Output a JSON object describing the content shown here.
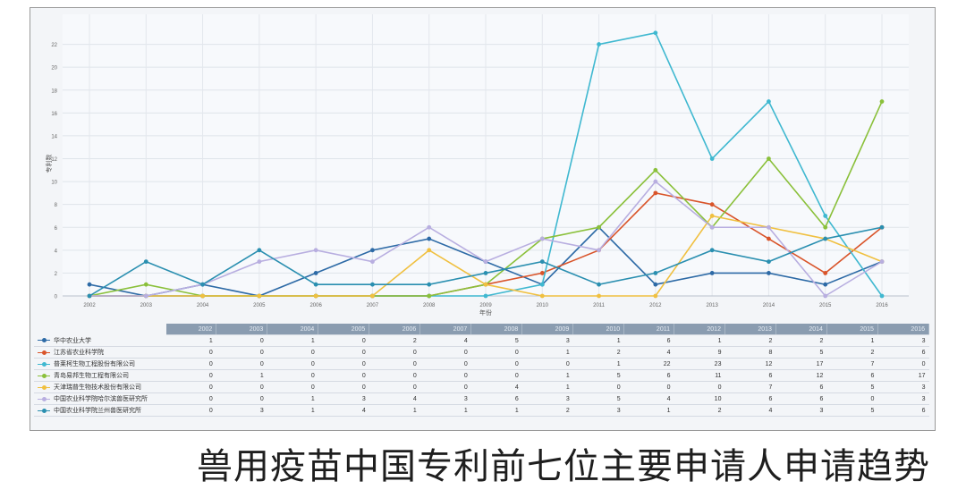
{
  "caption": "兽用疫苗中国专利前七位主要申请人申请趋势",
  "chart_data": {
    "type": "line",
    "xlabel": "年份",
    "ylabel": "专利数",
    "ylim": [
      0,
      24
    ],
    "y_ticks": [
      0,
      2,
      4,
      6,
      8,
      10,
      12,
      14,
      16,
      18,
      20,
      22
    ],
    "x": [
      "2002",
      "2003",
      "2004",
      "2005",
      "2006",
      "2007",
      "2008",
      "2009",
      "2010",
      "2011",
      "2012",
      "2013",
      "2014",
      "2015",
      "2016"
    ],
    "grid": true,
    "legend": "table-below",
    "series": [
      {
        "name": "华中农业大学",
        "color": "#2d6aa6",
        "values": [
          1,
          0,
          1,
          0,
          2,
          4,
          5,
          3,
          1,
          6,
          1,
          2,
          2,
          1,
          3
        ]
      },
      {
        "name": "江苏省农业科学院",
        "color": "#d9542a",
        "values": [
          0,
          0,
          0,
          0,
          0,
          0,
          0,
          1,
          2,
          4,
          9,
          8,
          5,
          2,
          6
        ]
      },
      {
        "name": "普莱柯生物工程股份有限公司",
        "color": "#3fb8d0",
        "values": [
          0,
          0,
          0,
          0,
          0,
          0,
          0,
          0,
          1,
          22,
          23,
          12,
          17,
          7,
          0
        ]
      },
      {
        "name": "青岛易邦生物工程有限公司",
        "color": "#8ac03a",
        "values": [
          0,
          1,
          0,
          0,
          0,
          0,
          0,
          1,
          5,
          6,
          11,
          6,
          12,
          6,
          17
        ]
      },
      {
        "name": "天津瑞普生物技术股份有限公司",
        "color": "#f0c040",
        "values": [
          0,
          0,
          0,
          0,
          0,
          0,
          4,
          1,
          0,
          0,
          0,
          7,
          6,
          5,
          3
        ]
      },
      {
        "name": "中国农业科学院哈尔滨兽医研究所",
        "color": "#b8aee0",
        "values": [
          0,
          0,
          1,
          3,
          4,
          3,
          6,
          3,
          5,
          4,
          10,
          6,
          6,
          0,
          3
        ]
      },
      {
        "name": "中国农业科学院兰州兽医研究所",
        "color": "#2a8fb0",
        "values": [
          0,
          3,
          1,
          4,
          1,
          1,
          1,
          2,
          3,
          1,
          2,
          4,
          3,
          5,
          6
        ]
      }
    ]
  }
}
